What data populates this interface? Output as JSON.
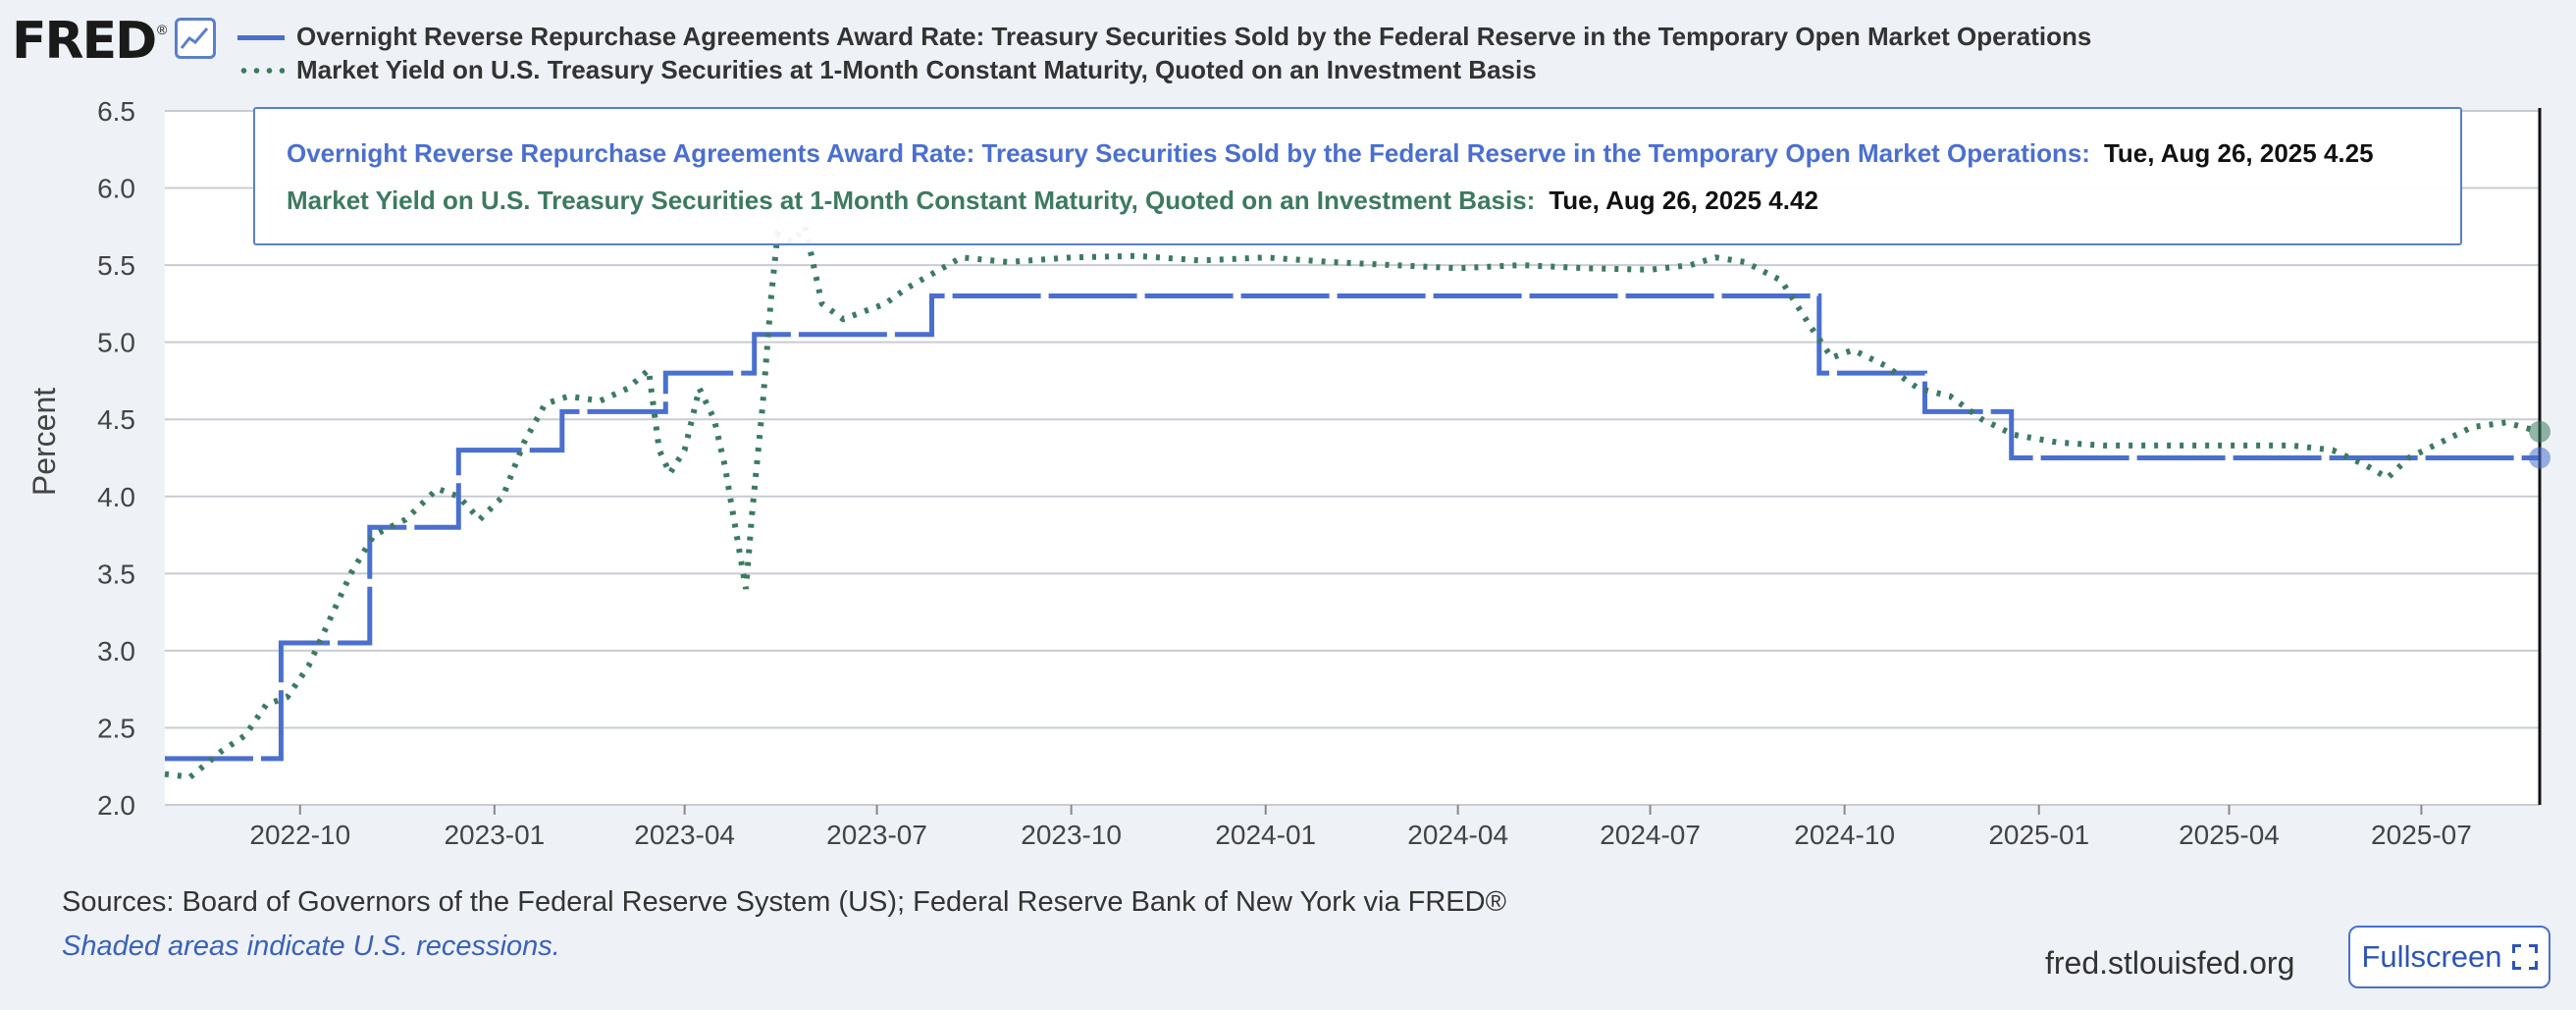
{
  "header": {
    "logo_text": "FRED",
    "logo_mark": "®",
    "logo_icon": "line-graph-icon"
  },
  "colors": {
    "series1": "#4a6fcf",
    "series2": "#3d7a60",
    "grid": "#c8ccd2",
    "accent": "#4a6fcf"
  },
  "tooltip": {
    "series1_name": "Overnight Reverse Repurchase Agreements Award Rate: Treasury Securities Sold by the Federal Reserve in the Temporary Open Market Operations:",
    "series1_value": "Tue, Aug 26, 2025 4.25",
    "series2_name": "Market Yield on U.S. Treasury Securities at 1-Month Constant Maturity, Quoted on an Investment Basis:",
    "series2_value": "Tue, Aug 26, 2025 4.42"
  },
  "footer": {
    "sources": "Sources: Board of Governors of the Federal Reserve System (US); Federal Reserve Bank of New York via FRED®",
    "note": "Shaded areas indicate U.S. recessions.",
    "site": "fred.stlouisfed.org",
    "fullscreen_label": "Fullscreen",
    "fullscreen_icon": "expand-icon"
  },
  "chart_data": {
    "type": "line",
    "ylabel": "Percent",
    "ylim": [
      2.0,
      6.5
    ],
    "yticks": [
      "2.0",
      "2.5",
      "3.0",
      "3.5",
      "4.0",
      "4.5",
      "5.0",
      "5.5",
      "6.0",
      "6.5"
    ],
    "xlim": [
      "2022-07-29",
      "2025-08-26"
    ],
    "xticks": [
      {
        "date": "2022-10-01",
        "label": "2022-10"
      },
      {
        "date": "2023-01-01",
        "label": "2023-01"
      },
      {
        "date": "2023-04-01",
        "label": "2023-04"
      },
      {
        "date": "2023-07-01",
        "label": "2023-07"
      },
      {
        "date": "2023-10-01",
        "label": "2023-10"
      },
      {
        "date": "2024-01-01",
        "label": "2024-01"
      },
      {
        "date": "2024-04-01",
        "label": "2024-04"
      },
      {
        "date": "2024-07-01",
        "label": "2024-07"
      },
      {
        "date": "2024-10-01",
        "label": "2024-10"
      },
      {
        "date": "2025-01-01",
        "label": "2025-01"
      },
      {
        "date": "2025-04-01",
        "label": "2025-04"
      },
      {
        "date": "2025-07-01",
        "label": "2025-07"
      }
    ],
    "grid": true,
    "legend": "top",
    "series": [
      {
        "name": "Overnight Reverse Repurchase Agreements Award Rate: Treasury Securities Sold by the Federal Reserve in the Temporary Open Market Operations",
        "style": "solid-step",
        "points": [
          [
            "2022-07-29",
            2.3
          ],
          [
            "2022-09-22",
            2.3
          ],
          [
            "2022-09-22",
            3.05
          ],
          [
            "2022-11-03",
            3.05
          ],
          [
            "2022-11-03",
            3.8
          ],
          [
            "2022-12-15",
            3.8
          ],
          [
            "2022-12-15",
            4.3
          ],
          [
            "2023-02-02",
            4.3
          ],
          [
            "2023-02-02",
            4.55
          ],
          [
            "2023-03-23",
            4.55
          ],
          [
            "2023-03-23",
            4.8
          ],
          [
            "2023-05-04",
            4.8
          ],
          [
            "2023-05-04",
            5.05
          ],
          [
            "2023-07-27",
            5.05
          ],
          [
            "2023-07-27",
            5.3
          ],
          [
            "2024-09-19",
            5.3
          ],
          [
            "2024-09-19",
            4.8
          ],
          [
            "2024-11-08",
            4.8
          ],
          [
            "2024-11-08",
            4.55
          ],
          [
            "2024-12-19",
            4.55
          ],
          [
            "2024-12-19",
            4.25
          ],
          [
            "2025-08-26",
            4.25
          ]
        ]
      },
      {
        "name": "Market Yield on U.S. Treasury Securities at 1-Month Constant Maturity, Quoted on an Investment Basis",
        "style": "dotted",
        "points": [
          [
            "2022-07-29",
            2.2
          ],
          [
            "2022-08-10",
            2.18
          ],
          [
            "2022-08-25",
            2.35
          ],
          [
            "2022-09-05",
            2.45
          ],
          [
            "2022-09-15",
            2.65
          ],
          [
            "2022-09-25",
            2.7
          ],
          [
            "2022-10-05",
            2.9
          ],
          [
            "2022-10-15",
            3.2
          ],
          [
            "2022-10-25",
            3.5
          ],
          [
            "2022-11-05",
            3.75
          ],
          [
            "2022-11-20",
            3.85
          ],
          [
            "2022-12-05",
            4.05
          ],
          [
            "2022-12-15",
            4.0
          ],
          [
            "2022-12-25",
            3.85
          ],
          [
            "2023-01-05",
            4.0
          ],
          [
            "2023-01-15",
            4.35
          ],
          [
            "2023-01-25",
            4.6
          ],
          [
            "2023-02-05",
            4.65
          ],
          [
            "2023-02-20",
            4.62
          ],
          [
            "2023-03-05",
            4.7
          ],
          [
            "2023-03-15",
            4.82
          ],
          [
            "2023-03-20",
            4.3
          ],
          [
            "2023-03-25",
            4.15
          ],
          [
            "2023-04-01",
            4.3
          ],
          [
            "2023-04-08",
            4.7
          ],
          [
            "2023-04-15",
            4.5
          ],
          [
            "2023-04-20",
            4.2
          ],
          [
            "2023-04-25",
            3.8
          ],
          [
            "2023-04-30",
            3.4
          ],
          [
            "2023-05-03",
            3.9
          ],
          [
            "2023-05-08",
            4.6
          ],
          [
            "2023-05-12",
            5.3
          ],
          [
            "2023-05-15",
            5.7
          ],
          [
            "2023-05-22",
            5.65
          ],
          [
            "2023-05-28",
            5.75
          ],
          [
            "2023-06-05",
            5.25
          ],
          [
            "2023-06-15",
            5.15
          ],
          [
            "2023-06-25",
            5.2
          ],
          [
            "2023-07-05",
            5.25
          ],
          [
            "2023-07-15",
            5.35
          ],
          [
            "2023-07-28",
            5.45
          ],
          [
            "2023-08-10",
            5.55
          ],
          [
            "2023-09-01",
            5.52
          ],
          [
            "2023-10-01",
            5.55
          ],
          [
            "2023-11-01",
            5.56
          ],
          [
            "2023-12-01",
            5.53
          ],
          [
            "2024-01-01",
            5.55
          ],
          [
            "2024-02-01",
            5.52
          ],
          [
            "2024-03-01",
            5.5
          ],
          [
            "2024-04-01",
            5.48
          ],
          [
            "2024-05-01",
            5.5
          ],
          [
            "2024-06-01",
            5.48
          ],
          [
            "2024-07-01",
            5.47
          ],
          [
            "2024-07-20",
            5.5
          ],
          [
            "2024-08-01",
            5.55
          ],
          [
            "2024-08-15",
            5.52
          ],
          [
            "2024-09-01",
            5.4
          ],
          [
            "2024-09-15",
            5.1
          ],
          [
            "2024-09-25",
            4.9
          ],
          [
            "2024-10-05",
            4.95
          ],
          [
            "2024-10-20",
            4.85
          ],
          [
            "2024-11-05",
            4.7
          ],
          [
            "2024-11-20",
            4.65
          ],
          [
            "2024-12-05",
            4.5
          ],
          [
            "2024-12-20",
            4.4
          ],
          [
            "2025-01-10",
            4.35
          ],
          [
            "2025-02-01",
            4.33
          ],
          [
            "2025-03-01",
            4.33
          ],
          [
            "2025-04-01",
            4.33
          ],
          [
            "2025-05-01",
            4.33
          ],
          [
            "2025-05-20",
            4.3
          ],
          [
            "2025-06-05",
            4.2
          ],
          [
            "2025-06-15",
            4.12
          ],
          [
            "2025-06-25",
            4.25
          ],
          [
            "2025-07-10",
            4.35
          ],
          [
            "2025-07-25",
            4.45
          ],
          [
            "2025-08-10",
            4.48
          ],
          [
            "2025-08-26",
            4.42
          ]
        ]
      }
    ]
  }
}
